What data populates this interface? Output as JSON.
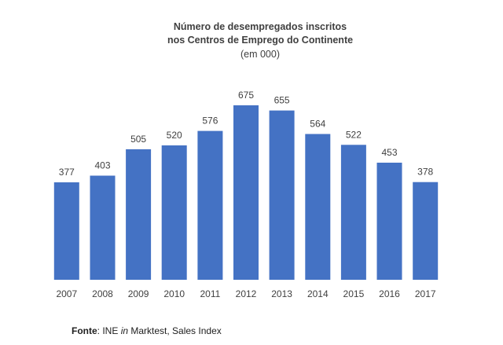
{
  "chart_data": {
    "type": "bar",
    "title": [
      "Número de desempregados inscritos",
      "nos Centros de Emprego do Continente"
    ],
    "subtitle": "(em 000)",
    "categories": [
      "2007",
      "2008",
      "2009",
      "2010",
      "2011",
      "2012",
      "2013",
      "2014",
      "2015",
      "2016",
      "2017"
    ],
    "values": [
      377,
      403,
      505,
      520,
      576,
      675,
      655,
      564,
      522,
      453,
      378
    ],
    "data_labels": [
      "377",
      "403",
      "505",
      "520",
      "576",
      "675",
      "655",
      "564",
      "522",
      "453",
      "378"
    ],
    "bar_color": "#4472C4",
    "grid": false,
    "legend": "none",
    "y_axis_visible": false,
    "ylim": [
      0,
      700
    ]
  },
  "source": {
    "prefix": "Fonte",
    "separator": ":",
    "text_before": " INE ",
    "italic": "in",
    "text_after": " Marktest, Sales Index"
  }
}
